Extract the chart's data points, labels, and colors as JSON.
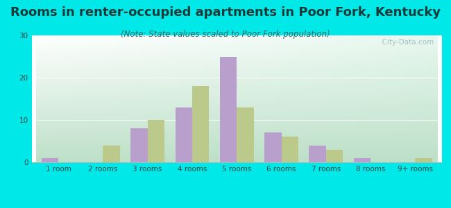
{
  "title": "Rooms in renter-occupied apartments in Poor Fork, Kentucky",
  "subtitle": "(Note: State values scaled to Poor Fork population)",
  "categories": [
    "1 room",
    "2 rooms",
    "3 rooms",
    "4 rooms",
    "5 rooms",
    "6 rooms",
    "7 rooms",
    "8 rooms",
    "9+ rooms"
  ],
  "poor_fork": [
    1,
    0,
    8,
    13,
    25,
    7,
    4,
    1,
    0
  ],
  "kentucky": [
    0,
    4,
    10,
    18,
    13,
    6,
    3,
    0,
    1
  ],
  "poor_fork_color": "#b89fcc",
  "kentucky_color": "#bbc98a",
  "bg_color": "#00e8e8",
  "ylim": [
    0,
    30
  ],
  "yticks": [
    0,
    10,
    20,
    30
  ],
  "bar_width": 0.38,
  "title_fontsize": 13,
  "subtitle_fontsize": 8.5,
  "tick_fontsize": 7.5,
  "legend_fontsize": 9,
  "watermark": "  City-Data.com"
}
